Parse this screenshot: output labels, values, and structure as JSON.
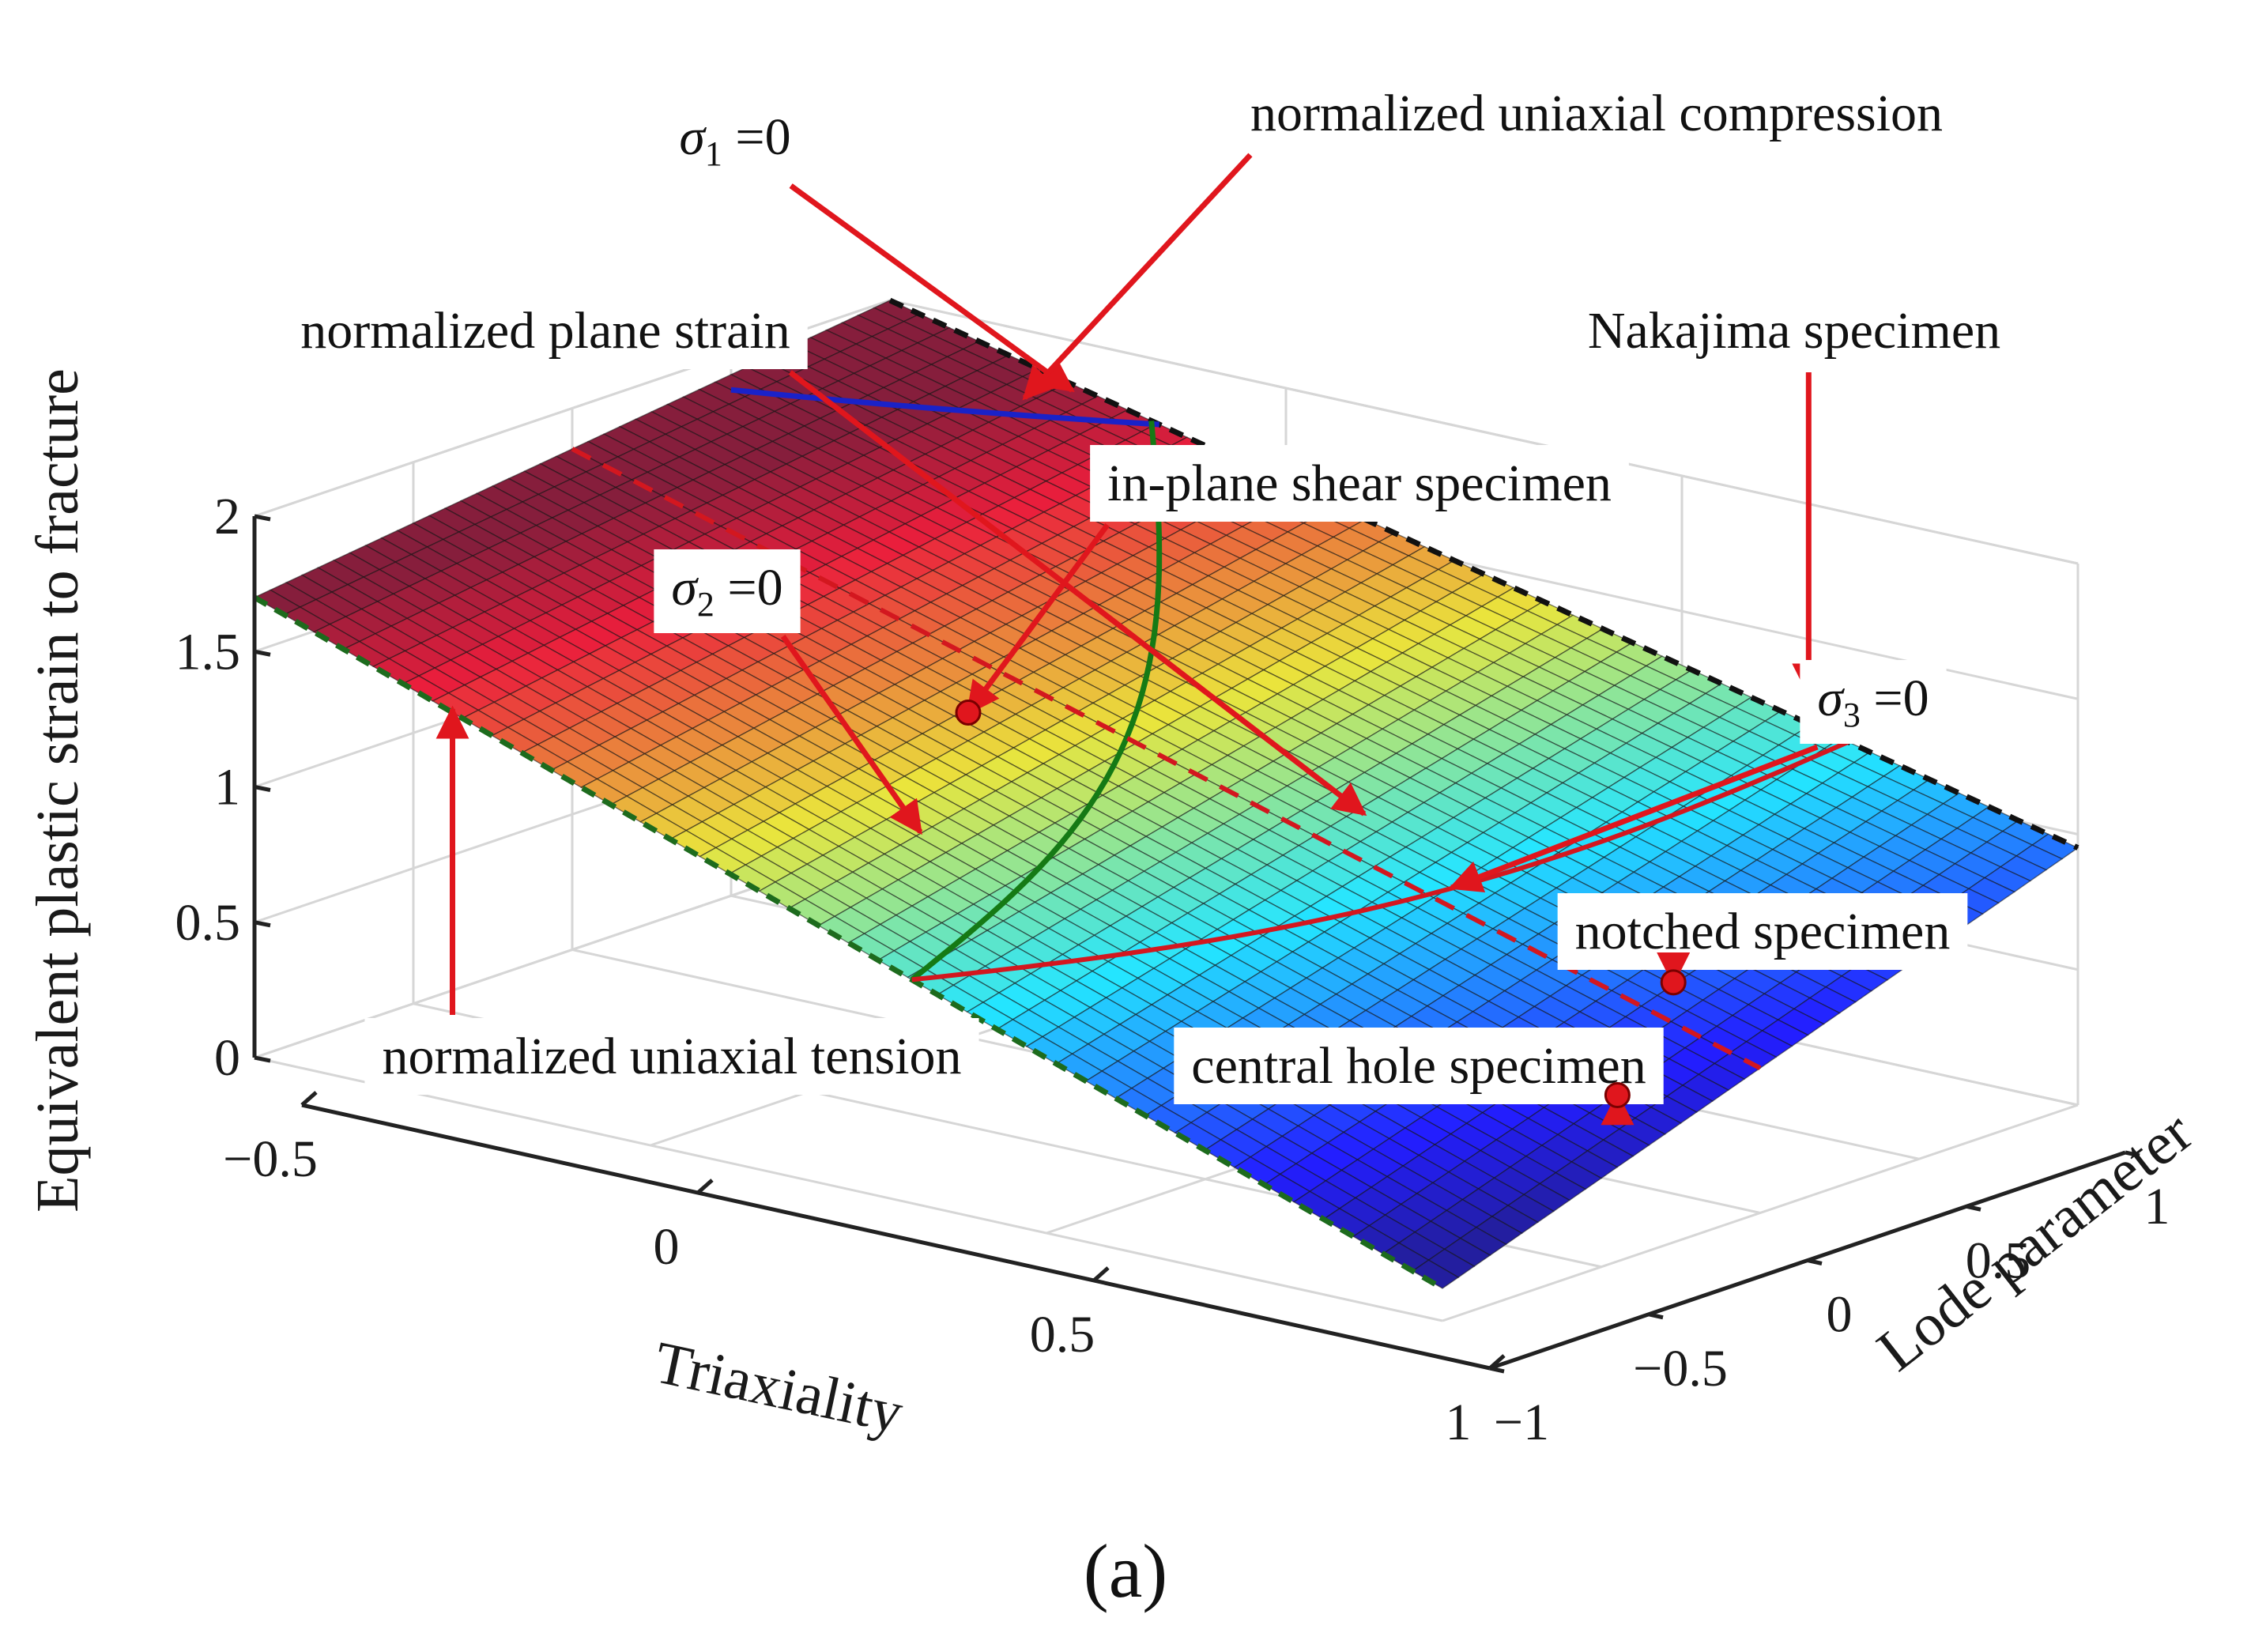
{
  "caption": "(a)",
  "chart_data": {
    "type": "surface",
    "title": "",
    "zlabel": "Equivalent plastic strain to fracture",
    "xlabel": "Triaxiality",
    "ylabel": "Lode parameter",
    "xlim": [
      -0.5,
      1
    ],
    "ylim": [
      -1,
      1
    ],
    "zlim": [
      0,
      2
    ],
    "x_ticks": [
      {
        "v": -0.5,
        "label": "−0.5"
      },
      {
        "v": 0,
        "label": "0"
      },
      {
        "v": 0.5,
        "label": "0.5"
      },
      {
        "v": 1,
        "label": "1"
      }
    ],
    "y_ticks": [
      {
        "v": -1,
        "label": "−1"
      },
      {
        "v": -0.5,
        "label": "−0.5"
      },
      {
        "v": 0,
        "label": "0"
      },
      {
        "v": 0.5,
        "label": "0.5"
      },
      {
        "v": 1,
        "label": "1"
      }
    ],
    "z_ticks": [
      {
        "v": 0,
        "label": "0"
      },
      {
        "v": 0.5,
        "label": "0.5"
      },
      {
        "v": 1,
        "label": "1"
      },
      {
        "v": 1.5,
        "label": "1.5"
      },
      {
        "v": 2,
        "label": "2"
      }
    ],
    "surface_corners": [
      {
        "x": -0.5,
        "y": -1,
        "z": 1.7
      },
      {
        "x": -0.5,
        "y": 1,
        "z": 2.0
      },
      {
        "x": 1,
        "y": -1,
        "z": 0.12
      },
      {
        "x": 1,
        "y": 1,
        "z": 0.95
      }
    ],
    "colormap": "jet",
    "annotations": [
      {
        "name": "sigma1-zero",
        "symbol": "σ",
        "sub": "1",
        "text": " =0",
        "target": [
          -0.25,
          0.95,
          1.85
        ]
      },
      {
        "name": "normalized-uniaxial-compression",
        "text": "normalized uniaxial compression",
        "target": [
          -0.33,
          1,
          1.75
        ]
      },
      {
        "name": "normalized-plane-strain",
        "text": "normalized plane strain",
        "target": [
          0.5,
          0,
          1.15
        ]
      },
      {
        "name": "nakajima-specimen",
        "text": "Nakajima specimen",
        "target": [
          0.66,
          1,
          1.3
        ]
      },
      {
        "name": "in-plane-shear-specimen",
        "text": "in-plane shear specimen",
        "target": [
          0,
          0,
          1.2
        ]
      },
      {
        "name": "sigma2-zero",
        "symbol": "σ",
        "sub": "2",
        "text": " =0",
        "target": [
          0.08,
          -0.35,
          0.95
        ]
      },
      {
        "name": "sigma3-zero",
        "symbol": "σ",
        "sub": "3",
        "text": " =0",
        "target": [
          0.55,
          0.15,
          0.85
        ]
      },
      {
        "name": "notched-specimen",
        "text": "notched specimen",
        "target": [
          0.75,
          0.35,
          0.55
        ]
      },
      {
        "name": "central-hole-specimen",
        "text": "central hole specimen",
        "target": [
          0.9,
          -0.2,
          0.45
        ]
      },
      {
        "name": "normalized-uniaxial-tension",
        "text": "normalized uniaxial tension",
        "target": [
          -0.25,
          -1,
          1.45
        ]
      }
    ],
    "points": [
      {
        "name": "in-plane-shear-point",
        "x": 0,
        "y": 0,
        "z": 1.2
      },
      {
        "name": "notched-point",
        "x": 0.75,
        "y": 0.35,
        "z": 0.55
      },
      {
        "name": "central-hole-point",
        "x": 0.9,
        "y": -0.2,
        "z": 0.45
      }
    ]
  }
}
